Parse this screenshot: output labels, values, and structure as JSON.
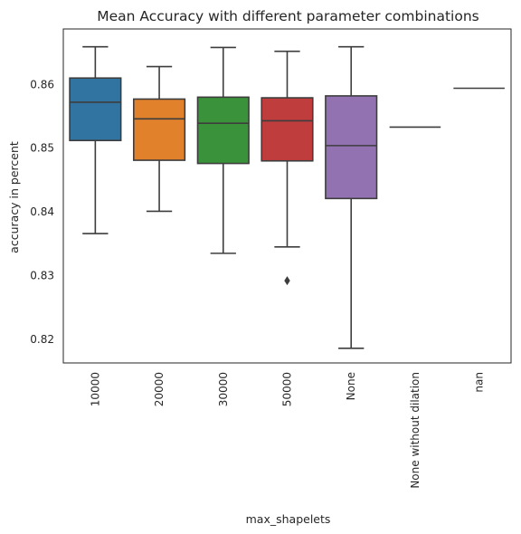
{
  "chart_data": {
    "type": "box",
    "title": "Mean Accuracy with different parameter combinations",
    "xlabel": "max_shapelets",
    "ylabel": "accuracy in percent",
    "ylim": [
      0.8163,
      0.8687
    ],
    "yticks": [
      0.82,
      0.83,
      0.84,
      0.85,
      0.86
    ],
    "yticklabels": [
      "0.82",
      "0.83",
      "0.84",
      "0.85",
      "0.86"
    ],
    "grid": false,
    "categories": [
      "10000",
      "20000",
      "30000",
      "50000",
      "None",
      "None without dilation",
      "nan"
    ],
    "boxes": [
      {
        "category": "10000",
        "whisker_low": 0.8366,
        "q1": 0.8512,
        "median": 0.8572,
        "q3": 0.861,
        "whisker_high": 0.8659,
        "fliers": [],
        "color": "#3274a1"
      },
      {
        "category": "20000",
        "whisker_low": 0.8401,
        "q1": 0.8481,
        "median": 0.8546,
        "q3": 0.8577,
        "whisker_high": 0.8628,
        "fliers": [],
        "color": "#e1812c"
      },
      {
        "category": "30000",
        "whisker_low": 0.8335,
        "q1": 0.8476,
        "median": 0.8539,
        "q3": 0.858,
        "whisker_high": 0.8658,
        "fliers": [],
        "color": "#3a923a"
      },
      {
        "category": "50000",
        "whisker_low": 0.8345,
        "q1": 0.848,
        "median": 0.8543,
        "q3": 0.8579,
        "whisker_high": 0.8652,
        "fliers": [
          0.8292
        ],
        "color": "#c03d3e"
      },
      {
        "category": "None",
        "whisker_low": 0.8186,
        "q1": 0.8421,
        "median": 0.8504,
        "q3": 0.8582,
        "whisker_high": 0.8659,
        "fliers": [],
        "color": "#9372b2"
      },
      {
        "category": "None without dilation",
        "whisker_low": 0.8533,
        "q1": 0.8533,
        "median": 0.8533,
        "q3": 0.8533,
        "whisker_high": 0.8533,
        "fliers": [],
        "color": "#845b53"
      },
      {
        "category": "nan",
        "whisker_low": 0.8594,
        "q1": 0.8594,
        "median": 0.8594,
        "q3": 0.8594,
        "whisker_high": 0.8594,
        "fliers": [],
        "color": "#d684bd"
      }
    ]
  }
}
